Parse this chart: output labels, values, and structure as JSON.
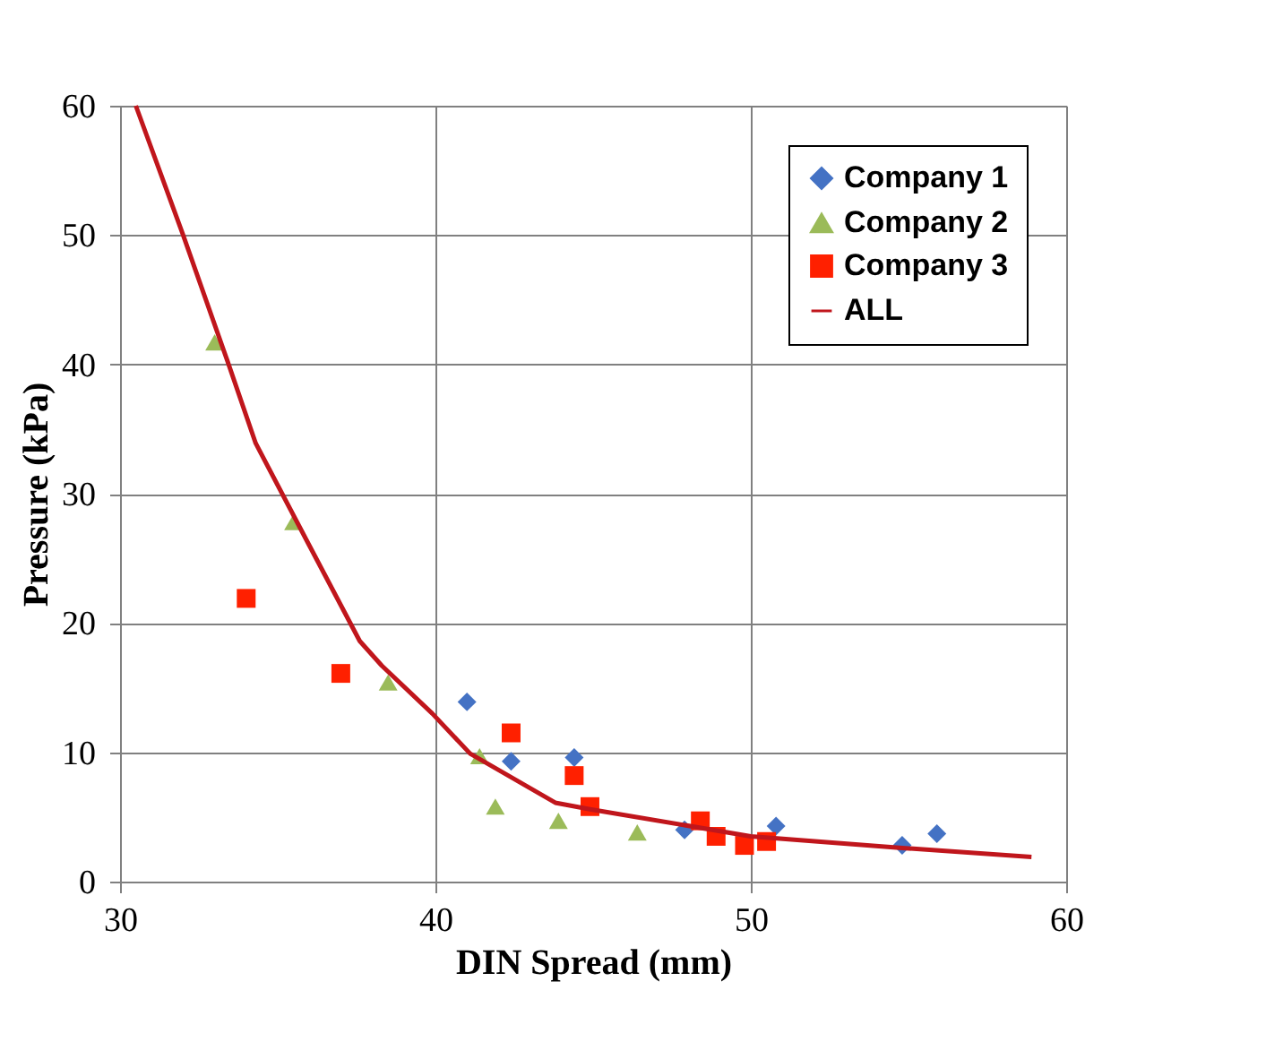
{
  "chart_data": {
    "type": "scatter",
    "xlabel": "DIN Spread (mm)",
    "ylabel": "Pressure (kPa)",
    "xlim": [
      30,
      60
    ],
    "ylim": [
      0,
      60
    ],
    "xticks": [
      30,
      40,
      50,
      60
    ],
    "yticks": [
      0,
      10,
      20,
      30,
      40,
      50,
      60
    ],
    "grid": true,
    "legend": "top right",
    "series": [
      {
        "name": "Company 1",
        "color": "#4472c4",
        "marker": "diamond",
        "x": [
          41.0,
          42.4,
          44.4,
          47.9,
          50.8,
          54.8,
          55.9
        ],
        "values": [
          13.9,
          9.3,
          9.6,
          4.0,
          4.3,
          2.8,
          3.7
        ]
      },
      {
        "name": "Company 2",
        "color": "#9bbb59",
        "marker": "triangle",
        "x": [
          33.0,
          35.5,
          38.5,
          41.4,
          41.9,
          43.9,
          46.4
        ],
        "values": [
          41.7,
          27.8,
          15.4,
          9.7,
          5.8,
          4.7,
          3.8
        ]
      },
      {
        "name": "Company 3",
        "color": "#ff2000",
        "marker": "square",
        "x": [
          34.0,
          37.0,
          42.4,
          44.4,
          44.9,
          48.4,
          48.9,
          49.8,
          50.5
        ],
        "values": [
          21.9,
          16.1,
          11.5,
          8.2,
          5.8,
          4.7,
          3.5,
          2.8,
          3.1
        ]
      },
      {
        "name": "ALL",
        "type": "line",
        "color": "#c0161c",
        "marker": "none",
        "x": [
          30.5,
          32.0,
          33.4,
          34.3,
          36.0,
          37.6,
          38.3,
          39.9,
          41.1,
          43.8,
          44.9,
          50.0,
          54.8,
          58.9
        ],
        "values": [
          60,
          50,
          40.3,
          33.9,
          26,
          18.6,
          16.7,
          13.0,
          9.9,
          6.1,
          5.6,
          3.5,
          2.6,
          1.9
        ]
      }
    ]
  }
}
